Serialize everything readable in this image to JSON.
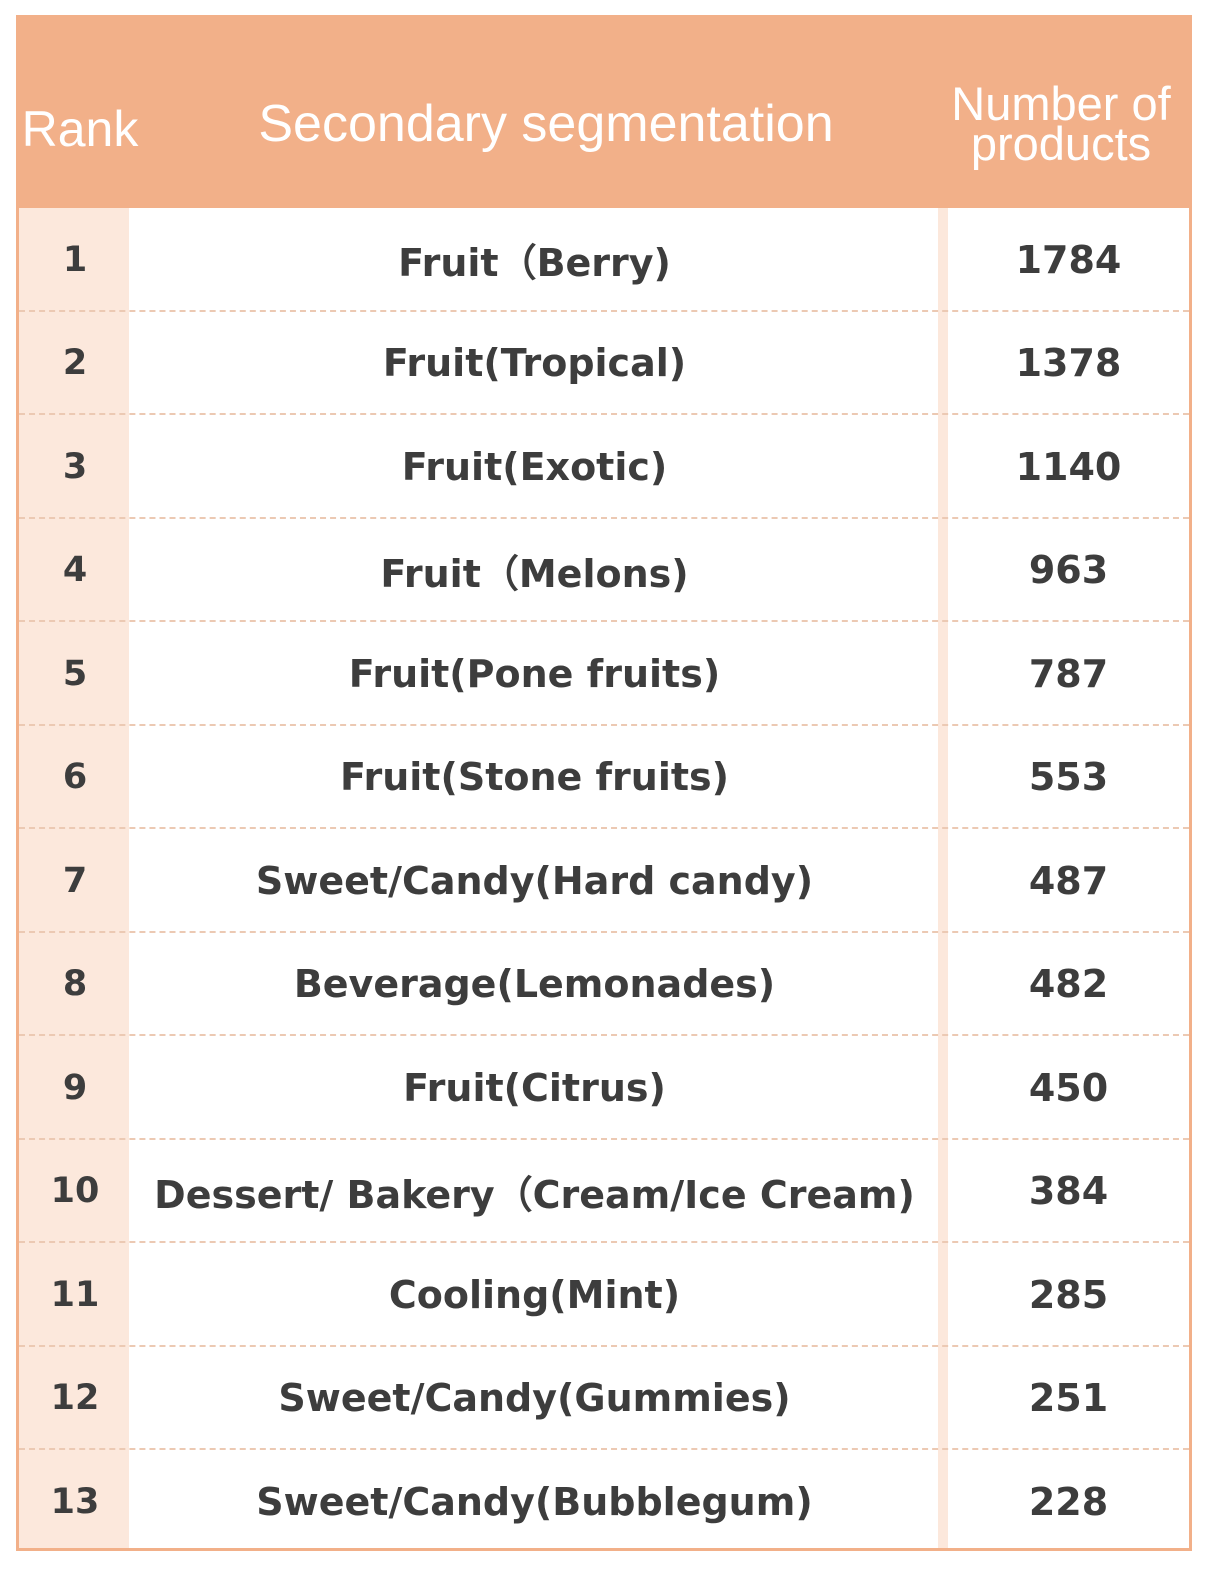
{
  "chart_data": {
    "type": "table",
    "columns": [
      "Rank",
      "Secondary segmentation",
      "Number of products"
    ],
    "rows": [
      {
        "rank": "1",
        "segment": "Fruit（Berry)",
        "count": 1784
      },
      {
        "rank": "2",
        "segment": "Fruit(Tropical)",
        "count": 1378
      },
      {
        "rank": "3",
        "segment": "Fruit(Exotic)",
        "count": 1140
      },
      {
        "rank": "4",
        "segment": "Fruit（Melons)",
        "count": 963
      },
      {
        "rank": "5",
        "segment": "Fruit(Pone fruits)",
        "count": 787
      },
      {
        "rank": "6",
        "segment": "Fruit(Stone fruits)",
        "count": 553
      },
      {
        "rank": "7",
        "segment": "Sweet/Candy(Hard candy)",
        "count": 487
      },
      {
        "rank": "8",
        "segment": "Beverage(Lemonades)",
        "count": 482
      },
      {
        "rank": "9",
        "segment": "Fruit(Citrus)",
        "count": 450
      },
      {
        "rank": "10",
        "segment": "Dessert/ Bakery（Cream/Ice Cream)",
        "count": 384
      },
      {
        "rank": "11",
        "segment": "Cooling(Mint)",
        "count": 285
      },
      {
        "rank": "12",
        "segment": "Sweet/Candy(Gummies)",
        "count": 251
      },
      {
        "rank": "13",
        "segment": "Sweet/Candy(Bubblegum)",
        "count": 228
      }
    ]
  },
  "colors": {
    "header": "#f2b089",
    "header_text": "#ffffff",
    "accent_column": "#fce8dc",
    "body_text": "#3d3d3d"
  }
}
